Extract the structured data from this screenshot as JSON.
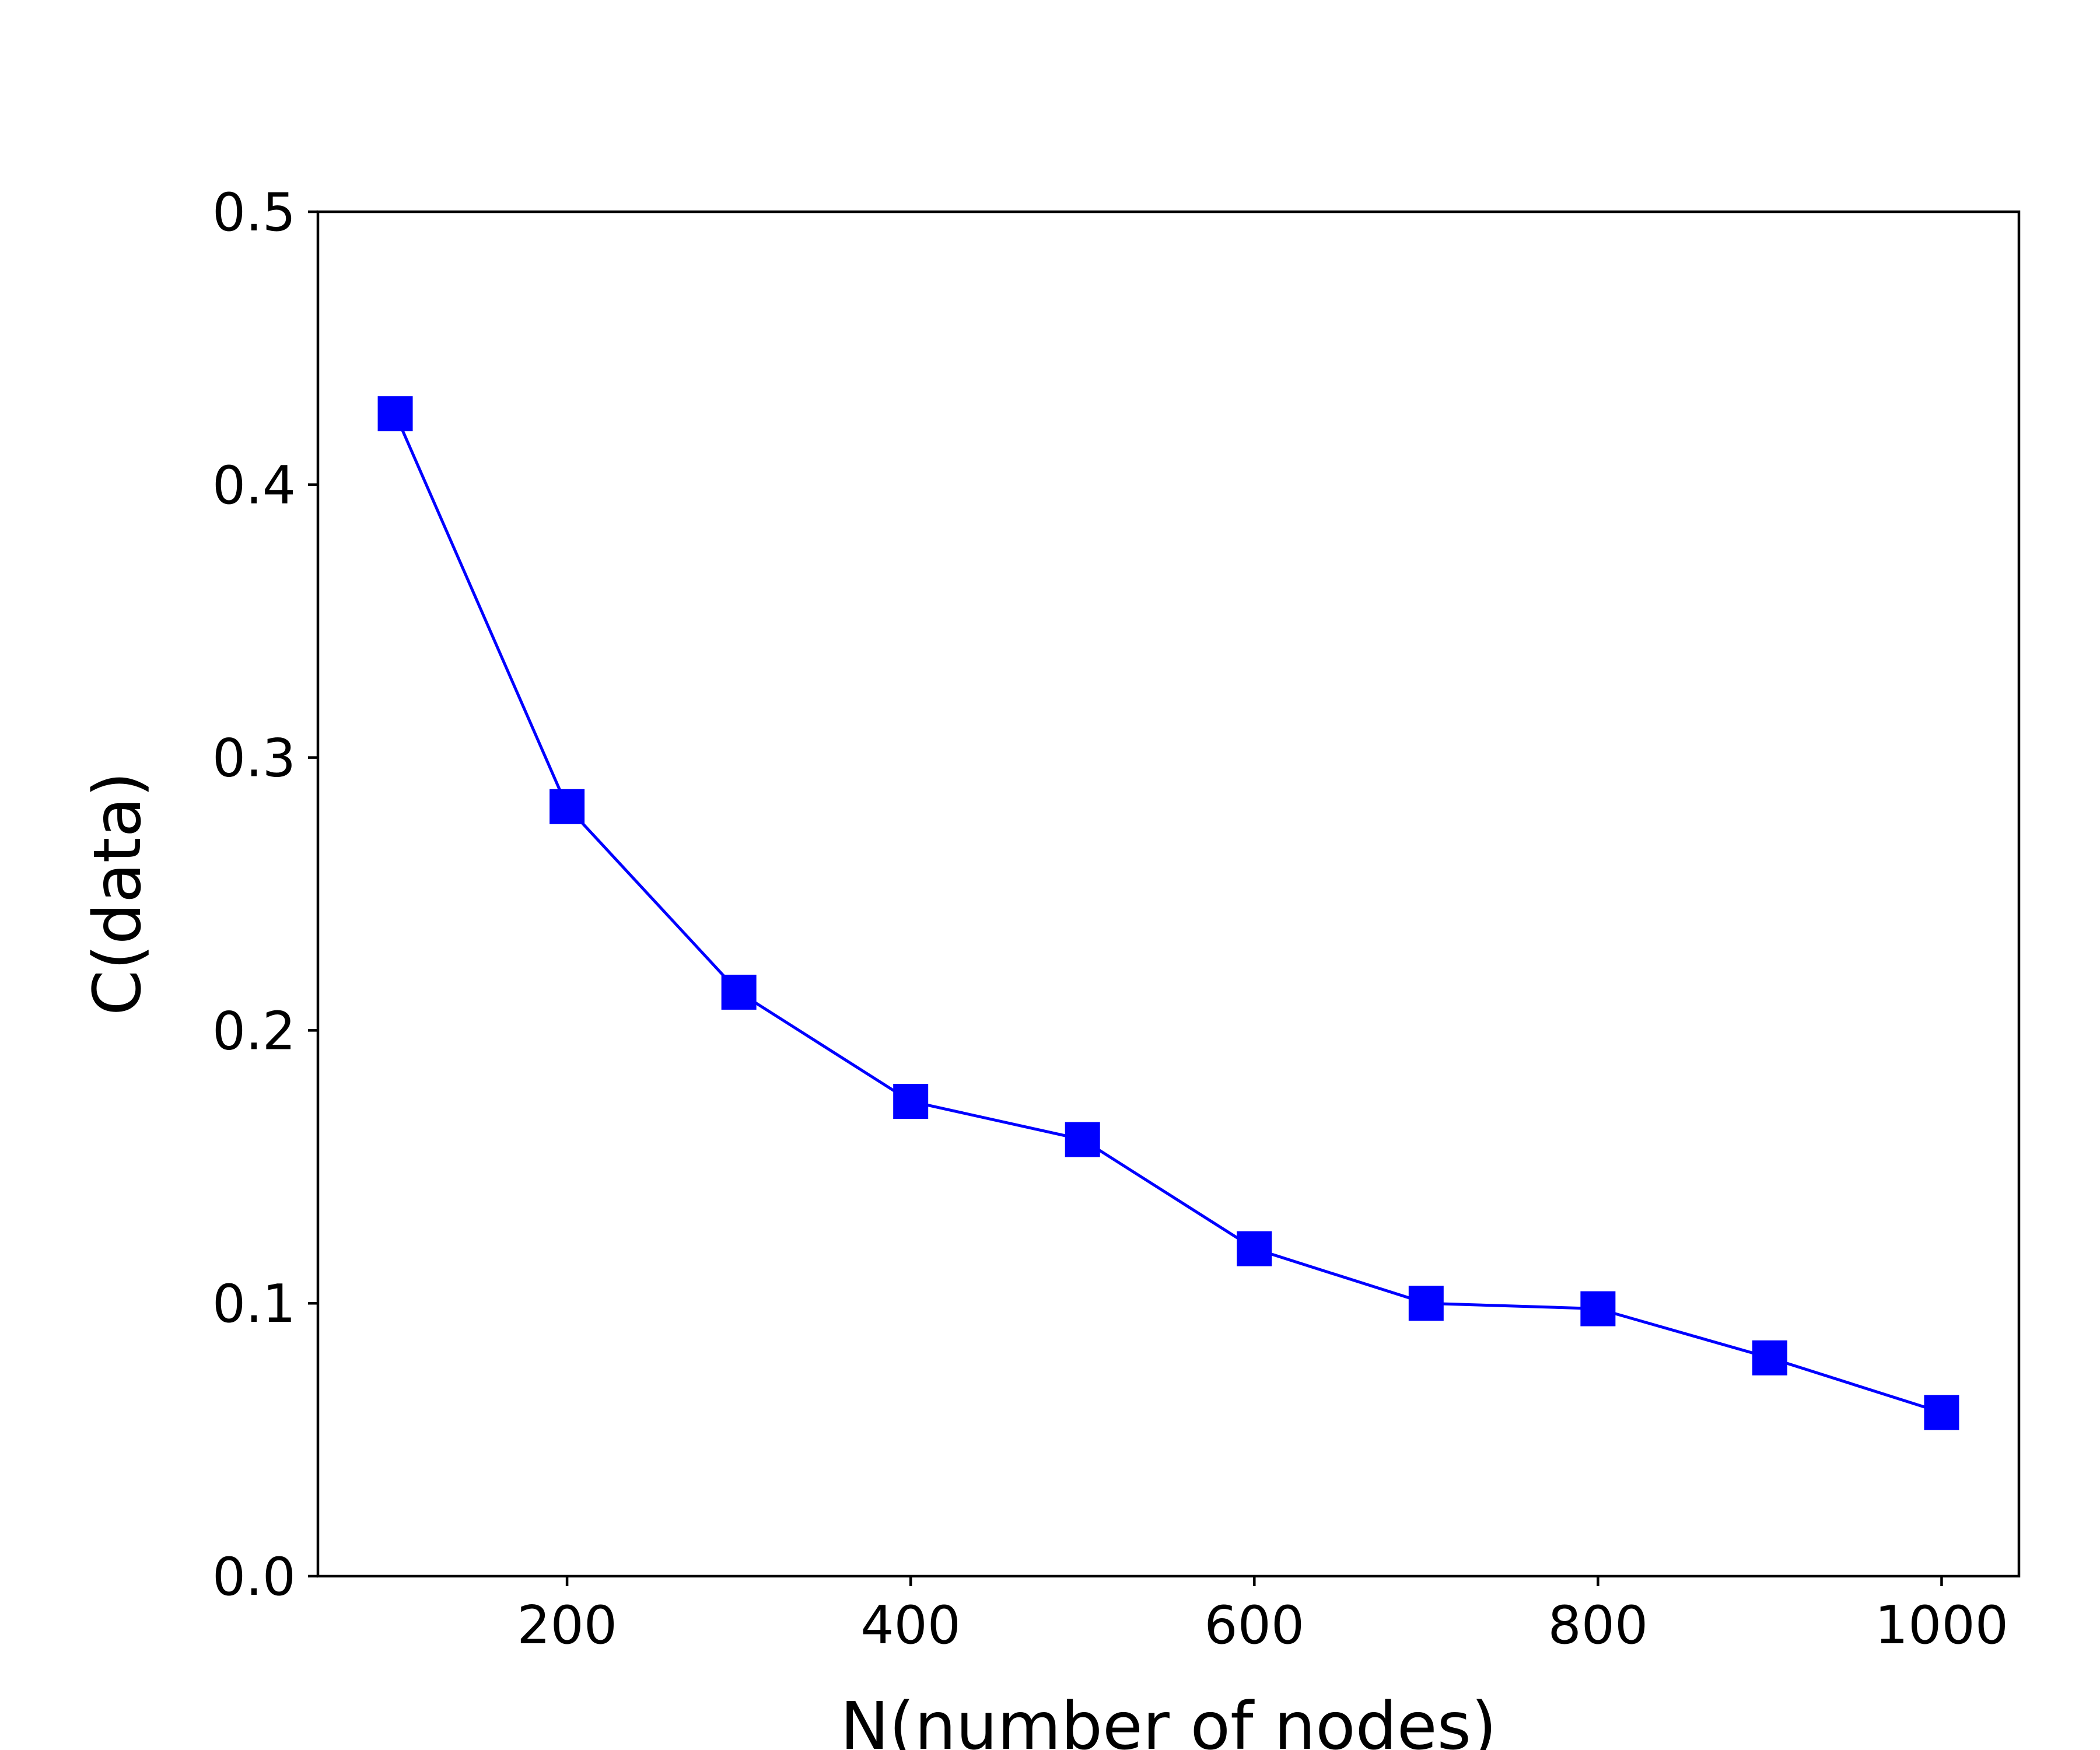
{
  "chart_data": {
    "type": "line",
    "title": "",
    "xlabel": "N(number of nodes)",
    "ylabel": "C(data)",
    "xlim": [
      55,
      1045
    ],
    "ylim": [
      0.0,
      0.5
    ],
    "x_ticks": [
      200,
      400,
      600,
      800,
      1000
    ],
    "y_ticks": [
      0.0,
      0.1,
      0.2,
      0.3,
      0.4,
      0.5
    ],
    "x_tick_labels": [
      "200",
      "400",
      "600",
      "800",
      "1000"
    ],
    "y_tick_labels": [
      "0.0",
      "0.1",
      "0.2",
      "0.3",
      "0.4",
      "0.5"
    ],
    "grid": false,
    "legend": "none",
    "series": [
      {
        "color": "#0000ff",
        "marker": "square",
        "x": [
          100,
          200,
          300,
          400,
          500,
          600,
          700,
          800,
          900,
          1000
        ],
        "y": [
          0.426,
          0.282,
          0.214,
          0.174,
          0.16,
          0.12,
          0.1,
          0.098,
          0.08,
          0.06
        ]
      }
    ]
  }
}
